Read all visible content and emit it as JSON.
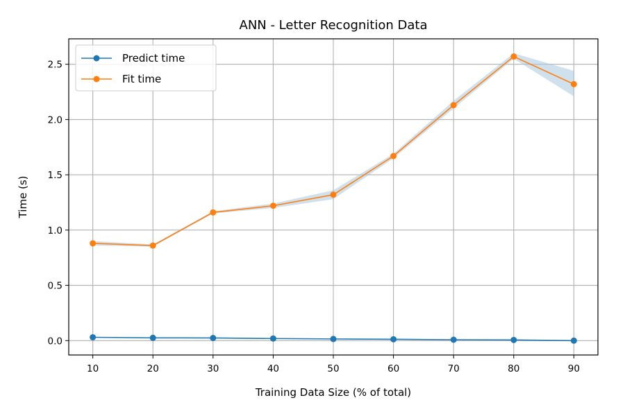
{
  "chart_data": {
    "type": "line",
    "title": "ANN - Letter Recognition Data",
    "xlabel": "Training Data Size (% of total)",
    "ylabel": "Time (s)",
    "x": [
      10,
      20,
      30,
      40,
      50,
      60,
      70,
      80,
      90
    ],
    "xticks": [
      "10",
      "20",
      "30",
      "40",
      "50",
      "60",
      "70",
      "80",
      "90"
    ],
    "yticks": [
      "0.0",
      "0.5",
      "1.0",
      "1.5",
      "2.0",
      "2.5"
    ],
    "xlim": [
      6,
      94
    ],
    "ylim": [
      -0.13,
      2.73
    ],
    "grid": true,
    "legend": "upper-left",
    "band_color": "#aac8e0",
    "series": [
      {
        "name": "Predict time",
        "color": "#1f77b4",
        "values": [
          0.03,
          0.025,
          0.024,
          0.019,
          0.015,
          0.012,
          0.008,
          0.006,
          0.0
        ],
        "band": [
          [
            0.026,
            0.034
          ],
          [
            0.021,
            0.029
          ],
          [
            0.02,
            0.028
          ],
          [
            0.015,
            0.023
          ],
          [
            0.011,
            0.019
          ],
          [
            0.008,
            0.016
          ],
          [
            0.004,
            0.012
          ],
          [
            0.002,
            0.01
          ],
          [
            -0.004,
            0.004
          ]
        ]
      },
      {
        "name": "Fit time",
        "color": "#ff7f0e",
        "values": [
          0.88,
          0.86,
          1.16,
          1.22,
          1.32,
          1.67,
          2.13,
          2.57,
          2.32
        ],
        "band": [
          [
            0.86,
            0.9
          ],
          [
            0.85,
            0.87
          ],
          [
            1.15,
            1.17
          ],
          [
            1.2,
            1.24
          ],
          [
            1.28,
            1.36
          ],
          [
            1.65,
            1.69
          ],
          [
            2.1,
            2.17
          ],
          [
            2.55,
            2.6
          ],
          [
            2.21,
            2.44
          ]
        ]
      }
    ]
  }
}
